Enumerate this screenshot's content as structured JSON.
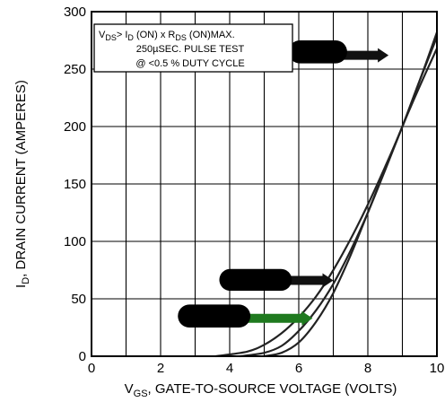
{
  "chart_data": {
    "type": "line",
    "title": "",
    "xlabel": {
      "prefix": "V",
      "sub": "GS",
      "rest": ", GATE-TO-SOURCE VOLTAGE (VOLTS)"
    },
    "ylabel": {
      "prefix": "I",
      "sub": "D",
      "rest": ", DRAIN CURRENT (AMPERES)"
    },
    "xlim": [
      0,
      10
    ],
    "ylim": [
      0,
      300
    ],
    "xticks": [
      0,
      2,
      4,
      6,
      8,
      10
    ],
    "yticks": [
      0,
      50,
      100,
      150,
      200,
      250,
      300
    ],
    "grid": true,
    "note": {
      "line1": {
        "a": "V",
        "a_sub": "DS",
        "b": "> I",
        "b_sub": "D",
        "c": " (ON) x  R",
        "c_sub": "DS",
        "d": " (ON)MAX."
      },
      "line2": "250µSEC.  PULSE  TEST",
      "line3": "@  <0.5 %  DUTY  CYCLE"
    },
    "series": [
      {
        "x": [
          3.6,
          4.5,
          5.0,
          5.5,
          6.0,
          6.5,
          7.0,
          7.5,
          8.0,
          8.5,
          9.0,
          9.5,
          10.0
        ],
        "y": [
          0,
          4,
          10,
          20,
          34,
          52,
          75,
          102,
          132,
          165,
          200,
          240,
          282
        ]
      },
      {
        "x": [
          4.3,
          5.0,
          5.5,
          6.0,
          6.5,
          7.0,
          7.5,
          8.0,
          8.5,
          9.0,
          9.5,
          10.0
        ],
        "y": [
          0,
          3,
          9,
          22,
          40,
          63,
          92,
          125,
          162,
          200,
          240,
          278
        ]
      },
      {
        "x": [
          5.0,
          5.5,
          6.0,
          6.5,
          7.0,
          7.5,
          8.0,
          8.5,
          9.0,
          9.5,
          10.0
        ],
        "y": [
          0,
          3,
          12,
          30,
          55,
          88,
          125,
          163,
          200,
          235,
          268
        ]
      }
    ],
    "callouts": [
      {
        "arrow_color": "#111111",
        "box_x": [
          5.7,
          7.4
        ],
        "box_y": [
          255,
          275
        ],
        "arrow_to_x": 8.6,
        "arrow_y": 262
      },
      {
        "arrow_color": "#111111",
        "box_x": [
          3.7,
          5.8
        ],
        "box_y": [
          57,
          76
        ],
        "arrow_to_x": 7.0,
        "arrow_y": 66
      },
      {
        "arrow_color": "#1f7a1f",
        "box_x": [
          2.5,
          4.6
        ],
        "box_y": [
          25,
          45
        ],
        "arrow_to_x": 6.4,
        "arrow_y": 33
      }
    ]
  }
}
